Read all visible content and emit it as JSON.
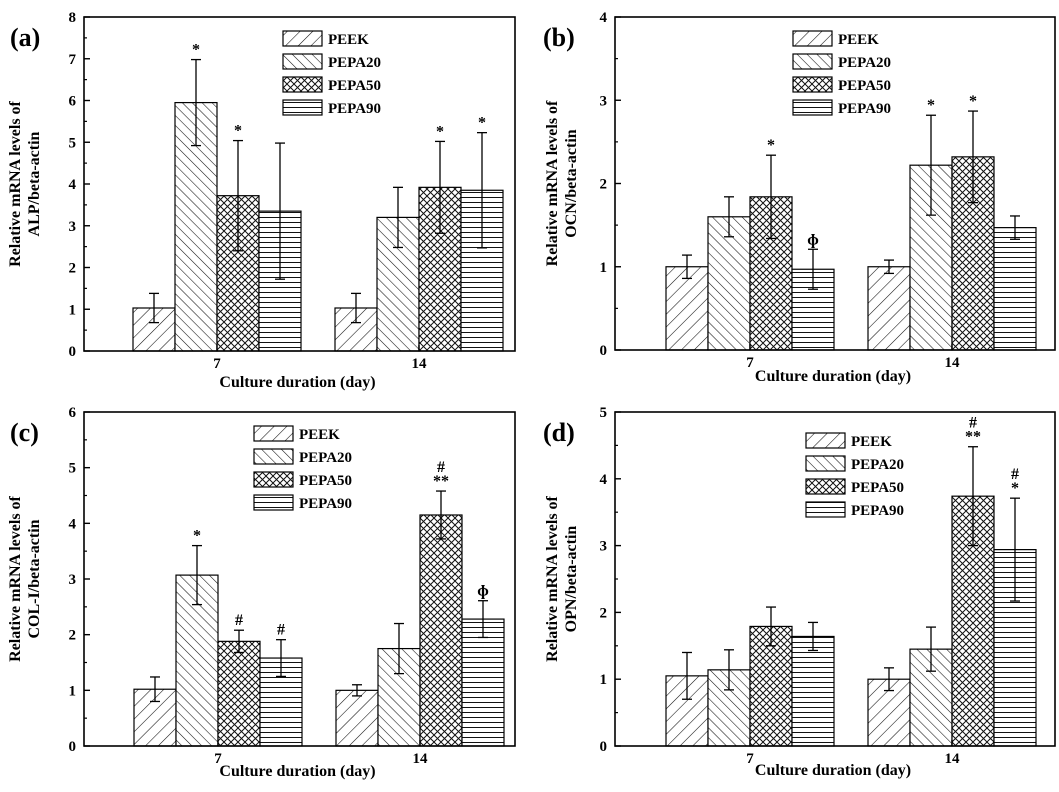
{
  "chart_data": [
    {
      "type": "bar",
      "panel": "(a)",
      "categories": [
        "7",
        "14"
      ],
      "series": [
        {
          "name": "PEEK",
          "values": [
            1.03,
            1.03
          ],
          "errors": [
            0.35,
            0.35
          ],
          "annotations": [
            "",
            ""
          ]
        },
        {
          "name": "PEPA20",
          "values": [
            5.95,
            3.2
          ],
          "errors": [
            1.03,
            0.72
          ],
          "annotations": [
            "*",
            ""
          ]
        },
        {
          "name": "PEPA50",
          "values": [
            3.72,
            3.92
          ],
          "errors": [
            1.32,
            1.1
          ],
          "annotations": [
            "*",
            "*"
          ]
        },
        {
          "name": "PEPA90",
          "values": [
            3.35,
            3.85
          ],
          "errors": [
            1.63,
            1.38
          ],
          "annotations": [
            "",
            "*"
          ]
        }
      ],
      "xlabel": "Culture duration (day)",
      "ylabel": [
        "Relative mRNA levels of",
        "ALP/beta-actin"
      ],
      "ylim": [
        0,
        8
      ],
      "yticks": [
        "0",
        "1",
        "2",
        "3",
        "4",
        "5",
        "6",
        "7",
        "8"
      ],
      "legend": "top-right"
    },
    {
      "type": "bar",
      "panel": "(b)",
      "categories": [
        "7",
        "14"
      ],
      "series": [
        {
          "name": "PEEK",
          "values": [
            1.0,
            1.0
          ],
          "errors": [
            0.14,
            0.08
          ],
          "annotations": [
            "",
            ""
          ]
        },
        {
          "name": "PEPA20",
          "values": [
            1.6,
            2.22
          ],
          "errors": [
            0.24,
            0.6
          ],
          "annotations": [
            "",
            "*"
          ]
        },
        {
          "name": "PEPA50",
          "values": [
            1.84,
            2.32
          ],
          "errors": [
            0.5,
            0.55
          ],
          "annotations": [
            "*",
            "*"
          ]
        },
        {
          "name": "PEPA90",
          "values": [
            0.97,
            1.47
          ],
          "errors": [
            0.24,
            0.14
          ],
          "annotations": [
            "ɸ",
            ""
          ]
        }
      ],
      "xlabel": "Culture duration (day)",
      "ylabel": [
        "Relative mRNA levels of",
        "OCN/beta-actin"
      ],
      "ylim": [
        0,
        4
      ],
      "yticks": [
        "0",
        "1",
        "2",
        "3",
        "4"
      ],
      "legend": "top-right"
    },
    {
      "type": "bar",
      "panel": "(c)",
      "categories": [
        "7",
        "14"
      ],
      "series": [
        {
          "name": "PEEK",
          "values": [
            1.02,
            1.0
          ],
          "errors": [
            0.22,
            0.1
          ],
          "annotations": [
            "",
            ""
          ]
        },
        {
          "name": "PEPA20",
          "values": [
            3.07,
            1.75
          ],
          "errors": [
            0.53,
            0.45
          ],
          "annotations": [
            "*",
            ""
          ]
        },
        {
          "name": "PEPA50",
          "values": [
            1.88,
            4.15
          ],
          "errors": [
            0.2,
            0.43
          ],
          "annotations": [
            "#",
            "**|#"
          ]
        },
        {
          "name": "PEPA90",
          "values": [
            1.58,
            2.28
          ],
          "errors": [
            0.33,
            0.33
          ],
          "annotations": [
            "#",
            "ɸ"
          ]
        }
      ],
      "xlabel": "Culture duration (day)",
      "ylabel": [
        "Relative mRNA levels of",
        "COL-I/beta-actin"
      ],
      "ylim": [
        0,
        6
      ],
      "yticks": [
        "0",
        "1",
        "2",
        "3",
        "4",
        "5",
        "6"
      ],
      "legend": "top-right"
    },
    {
      "type": "bar",
      "panel": "(d)",
      "categories": [
        "7",
        "14"
      ],
      "series": [
        {
          "name": "PEEK",
          "values": [
            1.05,
            1.0
          ],
          "errors": [
            0.35,
            0.17
          ],
          "annotations": [
            "",
            ""
          ]
        },
        {
          "name": "PEPA20",
          "values": [
            1.14,
            1.45
          ],
          "errors": [
            0.3,
            0.33
          ],
          "annotations": [
            "",
            ""
          ]
        },
        {
          "name": "PEPA50",
          "values": [
            1.79,
            3.74
          ],
          "errors": [
            0.29,
            0.74
          ],
          "annotations": [
            "",
            "**|#"
          ]
        },
        {
          "name": "PEPA90",
          "values": [
            1.64,
            2.94
          ],
          "errors": [
            0.21,
            0.77
          ],
          "annotations": [
            "",
            "*|#"
          ]
        }
      ],
      "xlabel": "Culture duration (day)",
      "ylabel": [
        "Relative mRNA levels of",
        "OPN/beta-actin"
      ],
      "ylim": [
        0,
        5
      ],
      "yticks": [
        "0",
        "1",
        "2",
        "3",
        "4",
        "5"
      ],
      "legend": "top-right"
    }
  ]
}
